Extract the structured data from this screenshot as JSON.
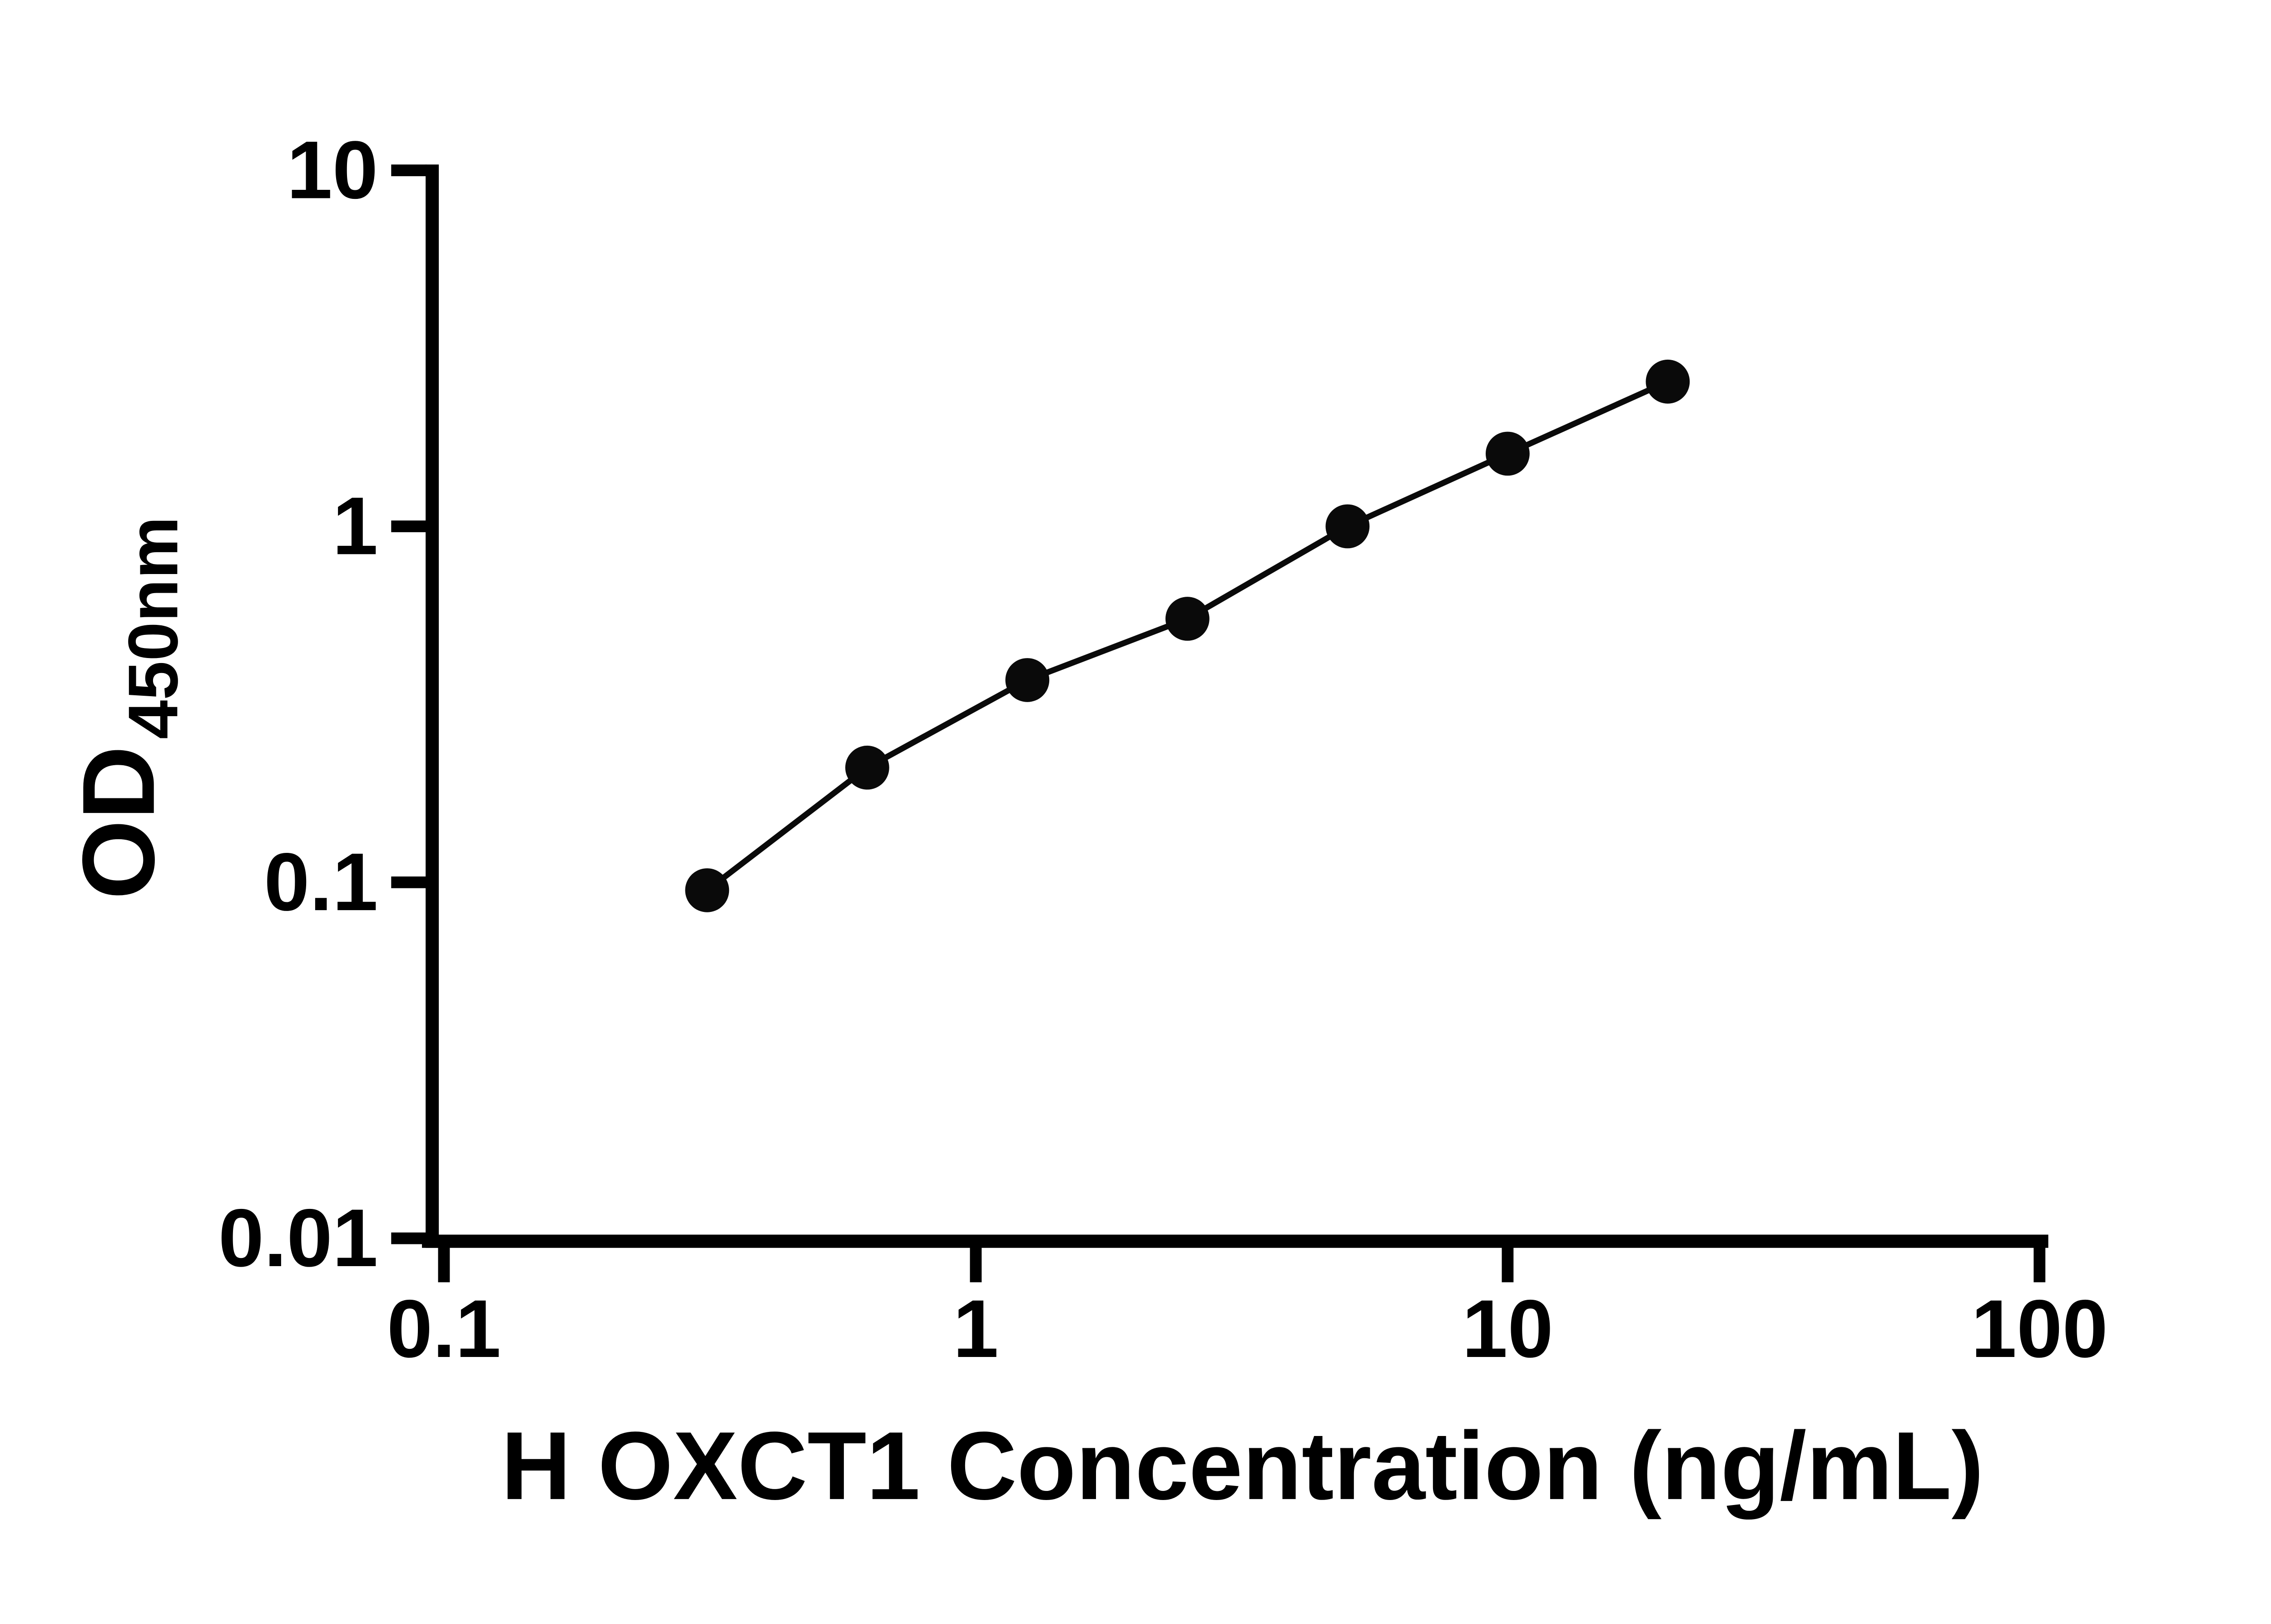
{
  "chart_data": {
    "type": "scatter",
    "title": "",
    "xlabel": "H OXCT1 Concentration (ng/mL)",
    "ylabel_main": "OD",
    "ylabel_sub": "450nm",
    "xscale": "log",
    "yscale": "log",
    "xlim": [
      0.1,
      100
    ],
    "ylim": [
      0.01,
      10
    ],
    "grid": false,
    "legend": false,
    "marker_color": "#0a0a0a",
    "line_color": "#0a0a0a",
    "axis_color": "#000000",
    "x": [
      0.3125,
      0.625,
      1.25,
      2.5,
      5,
      10,
      20
    ],
    "y": [
      0.095,
      0.21,
      0.37,
      0.55,
      1.0,
      1.6,
      2.55
    ],
    "x_ticks": [
      {
        "value": 0.1,
        "label": "0.1"
      },
      {
        "value": 1,
        "label": "1"
      },
      {
        "value": 10,
        "label": "10"
      },
      {
        "value": 100,
        "label": "100"
      }
    ],
    "y_ticks": [
      {
        "value": 0.01,
        "label": "0.01"
      },
      {
        "value": 0.1,
        "label": "0.1"
      },
      {
        "value": 1,
        "label": "1"
      },
      {
        "value": 10,
        "label": "10"
      }
    ]
  }
}
